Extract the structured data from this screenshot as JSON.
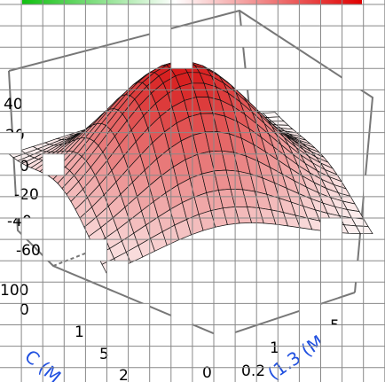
{
  "axis_labels": [
    "40",
    "20",
    "0",
    "-20",
    "-40",
    "-60",
    "100",
    "0",
    "1",
    "5",
    "2",
    "0",
    "0.2",
    "5",
    "1"
  ],
  "blue_labels": [
    "C (M",
    "(1.3 (M"
  ]
}
